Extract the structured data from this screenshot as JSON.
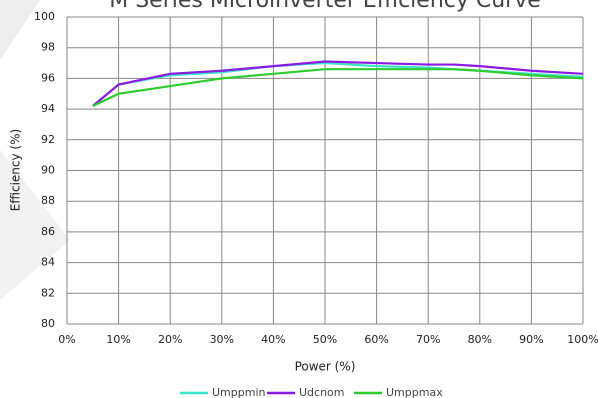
{
  "chart_data": {
    "type": "line",
    "title": "M Series Microinverter Efficiency Curve",
    "x_label": "Power (%)",
    "y_label": "Efficiency (%)",
    "x": [
      5,
      10,
      20,
      30,
      40,
      50,
      60,
      70,
      75,
      80,
      90,
      100
    ],
    "series": [
      {
        "name": "Umppmin",
        "color": "#3de6c8",
        "values": [
          94.2,
          95.6,
          96.2,
          96.4,
          96.8,
          97.0,
          96.8,
          96.7,
          96.6,
          96.5,
          96.3,
          96.1
        ]
      },
      {
        "name": "Udcnom",
        "color": "#8a1be0",
        "values": [
          94.2,
          95.6,
          96.3,
          96.5,
          96.8,
          97.1,
          97.0,
          96.9,
          96.9,
          96.8,
          96.5,
          96.3
        ]
      },
      {
        "name": "Umppmax",
        "color": "#2ecc2e",
        "values": [
          94.2,
          95.0,
          95.5,
          96.0,
          96.3,
          96.6,
          96.6,
          96.6,
          96.6,
          96.5,
          96.2,
          96.0
        ]
      }
    ],
    "xlim": [
      0,
      100
    ],
    "xticks": [
      {
        "value": 0,
        "label": "0%"
      },
      {
        "value": 10,
        "label": "10%"
      },
      {
        "value": 20,
        "label": "20%"
      },
      {
        "value": 30,
        "label": "30%"
      },
      {
        "value": 40,
        "label": "40%"
      },
      {
        "value": 50,
        "label": "50%"
      },
      {
        "value": 60,
        "label": "60%"
      },
      {
        "value": 70,
        "label": "70%"
      },
      {
        "value": 80,
        "label": "80%"
      },
      {
        "value": 90,
        "label": "90%"
      },
      {
        "value": 100,
        "label": "100%"
      }
    ],
    "ylim": [
      80,
      100
    ],
    "yticks": [
      80,
      82,
      84,
      86,
      88,
      90,
      92,
      94,
      96,
      98,
      100
    ],
    "grid": true,
    "legend": "bottom"
  }
}
